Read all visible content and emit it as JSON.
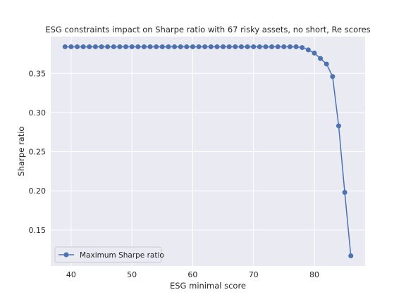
{
  "chart_data": {
    "type": "line",
    "title": "ESG constraints impact on Sharpe ratio with 67 risky assets, no short, Re scores",
    "xlabel": "ESG minimal score",
    "ylabel": "Sharpe ratio",
    "xlim": [
      36.65,
      88.35
    ],
    "ylim": [
      0.104,
      0.397
    ],
    "xticks": [
      40,
      50,
      60,
      70,
      80
    ],
    "yticks": [
      0.15,
      0.2,
      0.25,
      0.3,
      0.35
    ],
    "ytick_labels": [
      "0.15",
      "0.20",
      "0.25",
      "0.30",
      "0.35"
    ],
    "grid": true,
    "legend_position": "lower left",
    "colors": {
      "background": "#eaeaf2",
      "grid": "#ffffff",
      "series": "#4c72b0"
    },
    "series": [
      {
        "name": "Maximum Sharpe ratio",
        "marker": "circle",
        "x": [
          39,
          40,
          41,
          42,
          43,
          44,
          45,
          46,
          47,
          48,
          49,
          50,
          51,
          52,
          53,
          54,
          55,
          56,
          57,
          58,
          59,
          60,
          61,
          62,
          63,
          64,
          65,
          66,
          67,
          68,
          69,
          70,
          71,
          72,
          73,
          74,
          75,
          76,
          77,
          78,
          79,
          80,
          81,
          82,
          83,
          84,
          85,
          86
        ],
        "y": [
          0.384,
          0.384,
          0.384,
          0.384,
          0.384,
          0.384,
          0.384,
          0.384,
          0.384,
          0.384,
          0.384,
          0.384,
          0.384,
          0.384,
          0.384,
          0.384,
          0.384,
          0.384,
          0.384,
          0.384,
          0.384,
          0.384,
          0.384,
          0.384,
          0.384,
          0.384,
          0.384,
          0.384,
          0.384,
          0.384,
          0.384,
          0.384,
          0.384,
          0.384,
          0.384,
          0.384,
          0.384,
          0.384,
          0.384,
          0.383,
          0.38,
          0.376,
          0.369,
          0.362,
          0.346,
          0.283,
          0.198,
          0.117
        ]
      }
    ]
  }
}
